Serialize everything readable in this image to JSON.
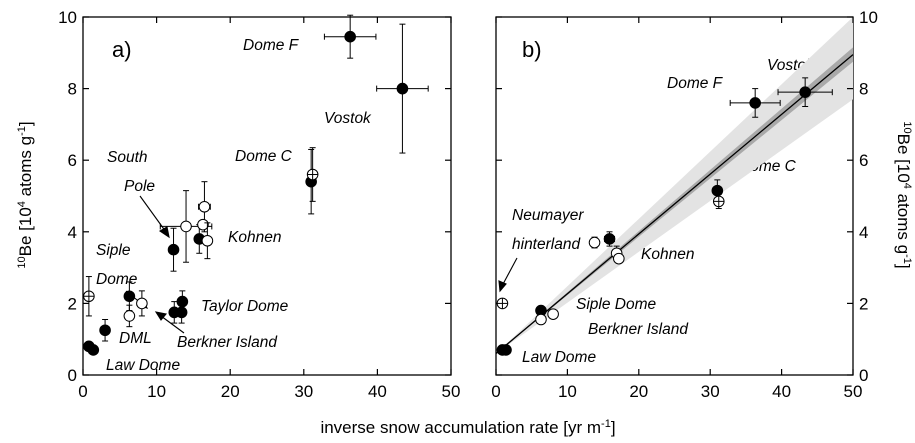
{
  "x_axis_label": "inverse snow accumulation rate [yr m",
  "x_axis_label_sup": "-1",
  "x_axis_label_tail": "]",
  "y_axis_label_sup": "10",
  "y_axis_label": "Be [10",
  "y_axis_label_sup2": "4",
  "y_axis_label_mid": " atoms g",
  "y_axis_label_sup3": "-1",
  "y_axis_label_tail": "]",
  "chart_data": [
    {
      "panel_label": "a)",
      "type": "scatter",
      "xlim": [
        0,
        50
      ],
      "ylim": [
        0,
        10
      ],
      "x_ticks": [
        "0",
        "10",
        "20",
        "30",
        "40",
        "50"
      ],
      "y_ticks": [
        "0",
        "2",
        "4",
        "6",
        "8",
        "10"
      ],
      "series": [
        {
          "marker": "filled-circle",
          "points": [
            {
              "x": 36.3,
              "y": 9.45,
              "xerr": 3.5,
              "yerr": 0.6
            },
            {
              "x": 43.4,
              "y": 8.0,
              "xerr": 3.5,
              "yerr": 1.8
            },
            {
              "x": 31.0,
              "y": 5.4,
              "xerr": 0.6,
              "yerr": 0.9
            },
            {
              "x": 12.3,
              "y": 3.5,
              "xerr": 0.0,
              "yerr": 0.6
            },
            {
              "x": 15.8,
              "y": 3.8,
              "xerr": 0.5,
              "yerr": 0.4
            },
            {
              "x": 6.3,
              "y": 2.2,
              "xerr": 0.0,
              "yerr": 0.4
            },
            {
              "x": 13.5,
              "y": 2.05,
              "xerr": 0.0,
              "yerr": 0.3
            },
            {
              "x": 12.4,
              "y": 1.75,
              "xerr": 0.0,
              "yerr": 0.3
            },
            {
              "x": 13.4,
              "y": 1.75,
              "xerr": 0.0,
              "yerr": 0.3
            },
            {
              "x": 3.0,
              "y": 1.25,
              "xerr": 0.0,
              "yerr": 0.3
            },
            {
              "x": 0.8,
              "y": 0.8,
              "xerr": 0.0,
              "yerr": 0.1
            },
            {
              "x": 1.4,
              "y": 0.7,
              "xerr": 0.0,
              "yerr": 0.1
            }
          ]
        },
        {
          "marker": "open-circle",
          "points": [
            {
              "x": 14.0,
              "y": 4.15,
              "xerr": 3.5,
              "yerr": 1.0
            },
            {
              "x": 16.5,
              "y": 4.7,
              "xerr": 0.8,
              "yerr": 0.7
            },
            {
              "x": 16.3,
              "y": 4.2,
              "xerr": 0.0,
              "yerr": 0.0
            },
            {
              "x": 16.9,
              "y": 3.75,
              "xerr": 0.5,
              "yerr": 0.5
            },
            {
              "x": 6.3,
              "y": 1.65,
              "xerr": 0.0,
              "yerr": 0.3
            },
            {
              "x": 8.0,
              "y": 2.0,
              "xerr": 0.0,
              "yerr": 0.35
            }
          ]
        },
        {
          "marker": "crossed-circle",
          "points": [
            {
              "x": 0.8,
              "y": 2.2,
              "xerr": 0.0,
              "yerr": 0.55
            },
            {
              "x": 31.2,
              "y": 5.6,
              "xerr": 0.0,
              "yerr": 0.75
            }
          ]
        }
      ],
      "annotations": [
        "Dome F",
        "Vostok",
        "Dome C",
        "South",
        "Pole",
        "Kohnen",
        "Siple",
        "Dome",
        "DML",
        "Taylor Dome",
        "Berkner Island",
        "Law Dome"
      ]
    },
    {
      "panel_label": "b)",
      "type": "scatter",
      "xlim": [
        0,
        50
      ],
      "ylim": [
        0,
        10
      ],
      "x_ticks": [
        "0",
        "10",
        "20",
        "30",
        "40",
        "50"
      ],
      "y_ticks": [
        "0",
        "2",
        "4",
        "6",
        "8",
        "10"
      ],
      "fit_line": {
        "x": [
          0,
          50
        ],
        "y": [
          0.6,
          8.95
        ]
      },
      "confidence_band_outer": {
        "x": [
          0,
          50
        ],
        "y_low": [
          0.6,
          7.7
        ],
        "y_high": [
          0.6,
          10.2
        ]
      },
      "confidence_band_inner": {
        "x": [
          0,
          50
        ],
        "y_low": [
          0.6,
          8.75
        ],
        "y_high": [
          0.6,
          9.15
        ]
      },
      "series": [
        {
          "marker": "filled-circle",
          "points": [
            {
              "x": 43.3,
              "y": 7.9,
              "xerr": 3.8,
              "yerr": 0.4
            },
            {
              "x": 36.3,
              "y": 7.6,
              "xerr": 3.5,
              "yerr": 0.4
            },
            {
              "x": 31.0,
              "y": 5.15,
              "xerr": 0.6,
              "yerr": 0.3
            },
            {
              "x": 15.9,
              "y": 3.8,
              "xerr": 0.7,
              "yerr": 0.2
            },
            {
              "x": 6.3,
              "y": 1.8,
              "xerr": 0.0,
              "yerr": 0.1
            },
            {
              "x": 0.9,
              "y": 0.7,
              "xerr": 0.0,
              "yerr": 0.0
            },
            {
              "x": 1.4,
              "y": 0.7,
              "xerr": 0.0,
              "yerr": 0.0
            }
          ]
        },
        {
          "marker": "open-circle",
          "points": [
            {
              "x": 13.8,
              "y": 3.7,
              "xerr": 0.6,
              "yerr": 0.15
            },
            {
              "x": 16.9,
              "y": 3.4,
              "xerr": 0.0,
              "yerr": 0.2
            },
            {
              "x": 17.2,
              "y": 3.25,
              "xerr": 0.0,
              "yerr": 0.0
            },
            {
              "x": 6.3,
              "y": 1.55,
              "xerr": 0.0,
              "yerr": 0.1
            },
            {
              "x": 8.0,
              "y": 1.7,
              "xerr": 0.0,
              "yerr": 0.0
            }
          ]
        },
        {
          "marker": "crossed-circle",
          "points": [
            {
              "x": 0.9,
              "y": 2.0,
              "xerr": 0.0,
              "yerr": 0.0
            },
            {
              "x": 31.2,
              "y": 4.85,
              "xerr": 0.0,
              "yerr": 0.2
            }
          ]
        }
      ],
      "annotations": [
        "Dome F",
        "Vostok",
        "Dome C",
        "Neumayer",
        "hinterland",
        "Kohnen",
        "Siple Dome",
        "Berkner Island",
        "Law Dome"
      ]
    }
  ]
}
